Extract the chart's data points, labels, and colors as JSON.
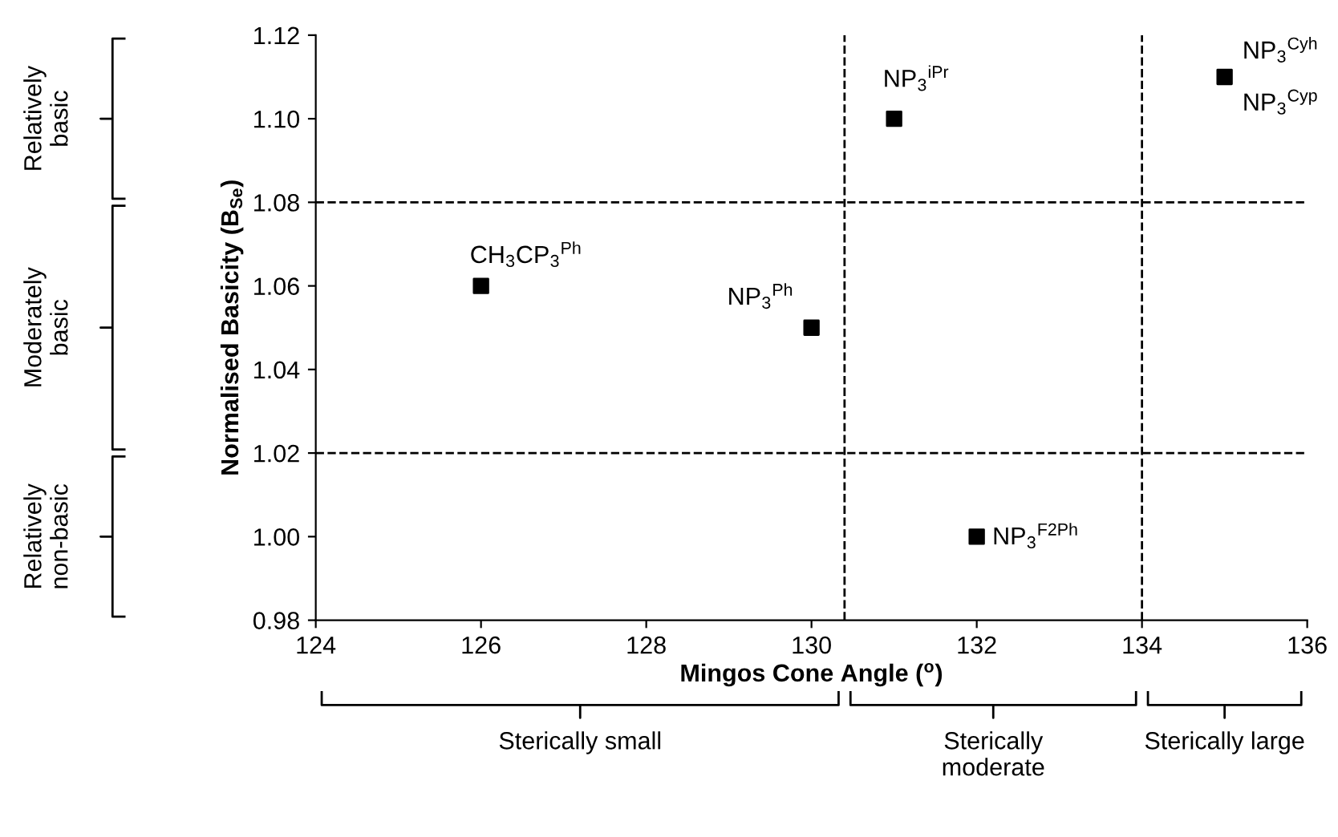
{
  "chart_data": {
    "type": "scatter",
    "xlabel": "Mingos Cone Angle ($^{o}$)",
    "ylabel": "Normalised Basicity (B$_{Se}$)",
    "series": [
      {
        "color": "#000000",
        "x": [
          126,
          130,
          131,
          132,
          135
        ],
        "values": [
          1.06,
          1.05,
          1.1,
          1.0,
          1.11
        ]
      }
    ],
    "marker": "square",
    "xlim": [
      124,
      136
    ],
    "xticks": [
      124,
      126,
      128,
      130,
      132,
      134,
      136
    ],
    "ylim": [
      0.98,
      1.12
    ],
    "yticks": [
      {
        "value": 0.98,
        "label": "0.98"
      },
      {
        "value": 1.0,
        "label": "1.00"
      },
      {
        "value": 1.02,
        "label": "1.02"
      },
      {
        "value": 1.04,
        "label": "1.04"
      },
      {
        "value": 1.06,
        "label": "1.06"
      },
      {
        "value": 1.08,
        "label": "1.08"
      },
      {
        "value": 1.1,
        "label": "1.10"
      },
      {
        "value": 1.12,
        "label": "1.12"
      }
    ],
    "grid": false,
    "ref_lines": [
      {
        "axis": "y",
        "value": 1.08,
        "line_style": "dashed",
        "color": "#000000"
      },
      {
        "axis": "y",
        "value": 1.02,
        "line_style": "dashed",
        "color": "#000000"
      },
      {
        "axis": "x",
        "value": 130.4,
        "line_style": "dashed",
        "color": "#000000"
      },
      {
        "axis": "x",
        "value": 134,
        "line_style": "dashed",
        "color": "#000000"
      }
    ],
    "annotations": [
      "Relatively\nbasic",
      "Moderately\nbasic",
      "Relatively\nnon-basic",
      "Sterically small",
      "Sterically\nmoderate",
      "Sterically large",
      {
        "text": "CH$_{3}$CP$_{3}$$^{Ph}$",
        "x": 126,
        "y": 1.06
      },
      {
        "text": "NP$_{3}$$^{Ph}$",
        "x": 130,
        "y": 1.05
      },
      {
        "text": "NP$_{3}$$^{iPr}$",
        "x": 131,
        "y": 1.1
      },
      {
        "text": "NP$_{3}$$^{F2Ph}$",
        "x": 132,
        "y": 1.0
      },
      {
        "text": "NP$_{3}$$^{Cyh}$",
        "x": 135,
        "y": 1.11
      },
      {
        "text": "NP$_{3}$$^{Cyp}$",
        "x": 135,
        "y": 1.11
      }
    ]
  }
}
